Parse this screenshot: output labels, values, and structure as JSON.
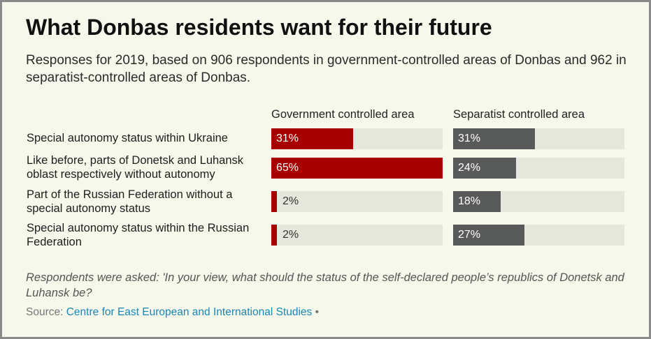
{
  "title": "What Donbas residents want for their future",
  "subtitle": "Responses for 2019, based on 906 respondents in government-controlled areas of Donbas and 962 in separatist-controlled areas of Donbas.",
  "note": "Respondents were asked: 'In your view, what should the status of the self-declared people’s republics of Donetsk and Luhansk be?",
  "source": {
    "label": "Source:",
    "link_text": "Centre for East European and International Studies",
    "separator": "•"
  },
  "colors": {
    "government": "#a80000",
    "separatist": "#575a58",
    "track": "#e6e7dc",
    "background": "#f6f8ec"
  },
  "chart_data": {
    "type": "bar",
    "orientation": "horizontal",
    "value_format": "percent",
    "xlim": [
      0,
      65
    ],
    "categories": [
      "Special autonomy status within Ukraine",
      "Like before, parts of Donetsk and Luhansk oblast respectively without autonomy",
      "Part of the Russian Federation without a special autonomy status",
      "Special autonomy status within the Russian Federation"
    ],
    "series": [
      {
        "name": "Government controlled area",
        "values": [
          31,
          65,
          2,
          2
        ]
      },
      {
        "name": "Separatist controlled area",
        "values": [
          31,
          24,
          18,
          27
        ]
      }
    ]
  }
}
